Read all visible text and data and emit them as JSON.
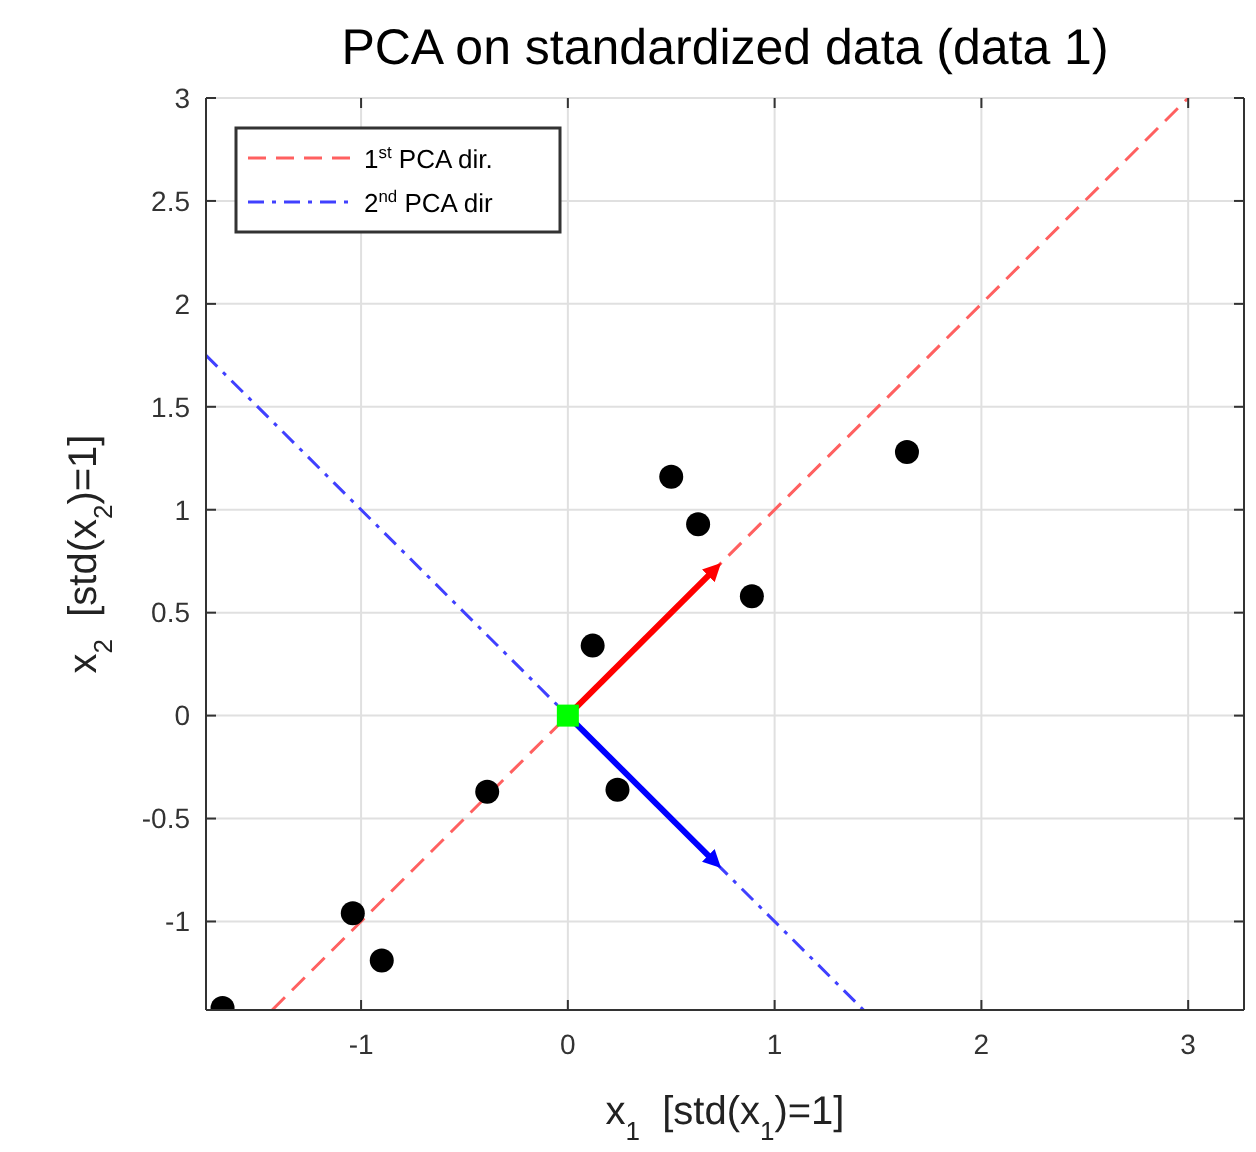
{
  "chart_data": {
    "type": "scatter",
    "title": "PCA on standardized data (data 1)",
    "xlabel": "x$_{1}$  [std(x$_{1}$)=1]",
    "ylabel": "x$_{2}$  [std(x$_{2}$)=1]",
    "xlim": [
      -1.75,
      3.27
    ],
    "ylim": [
      -1.43,
      3
    ],
    "xticks": [
      -1,
      0,
      1,
      2,
      3
    ],
    "yticks": [
      -1,
      -0.5,
      0,
      0.5,
      1,
      1.5,
      2,
      2.5,
      3
    ],
    "grid": true,
    "legend": "top left",
    "series": [
      {
        "type": "line",
        "name": "1$^{st}$ PCA dir.",
        "color": "#ff6060",
        "line_style": "dashed",
        "x": [
          -1.43,
          3
        ],
        "values": [
          -1.43,
          3
        ]
      },
      {
        "type": "line",
        "name": "2$^{nd}$ PCA dir",
        "color": "#4040ff",
        "line_style": "dashdot",
        "x": [
          -1.75,
          1.43
        ],
        "values": [
          1.75,
          -1.43
        ]
      },
      {
        "type": "line",
        "color": "#ff0000",
        "line_style": "solid",
        "x": [
          0,
          0.71
        ],
        "values": [
          0,
          0.71
        ]
      },
      {
        "type": "line",
        "color": "#0000ff",
        "line_style": "solid",
        "x": [
          0,
          0.71
        ],
        "values": [
          0,
          -0.71
        ]
      },
      {
        "color": "#000000",
        "marker": "circle",
        "x": [
          -1.67,
          -1.04,
          -0.9,
          -0.39,
          0.12,
          0.24,
          0.5,
          0.63,
          0.89,
          1.64
        ],
        "values": [
          -1.42,
          -0.96,
          -1.19,
          -0.37,
          0.34,
          -0.36,
          1.16,
          0.93,
          0.58,
          1.28
        ]
      },
      {
        "color": "#00ff00",
        "marker": "square",
        "x": [
          0
        ],
        "values": [
          0
        ]
      }
    ]
  }
}
